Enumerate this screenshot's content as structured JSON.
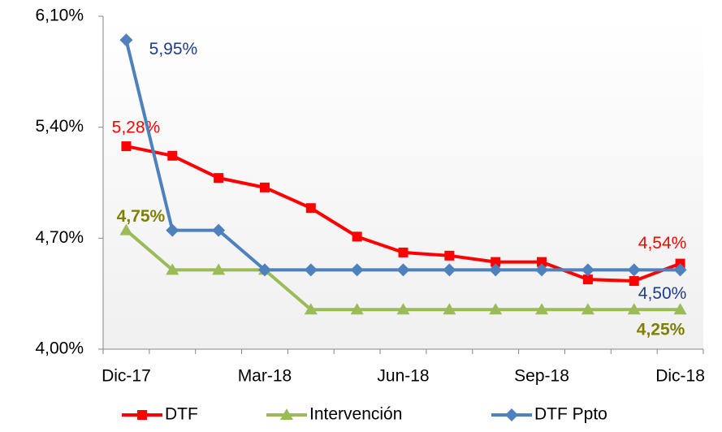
{
  "chart_data": {
    "type": "line",
    "categories": [
      "Dic-17",
      null,
      null,
      "Mar-18",
      null,
      null,
      "Jun-18",
      null,
      null,
      "Sep-18",
      null,
      null,
      "Dic-18"
    ],
    "series": [
      {
        "name": "DTF",
        "color": "#ff0000",
        "marker": "square",
        "values": [
          5.28,
          5.22,
          5.08,
          5.02,
          4.89,
          4.71,
          4.61,
          4.59,
          4.55,
          4.55,
          4.44,
          4.43,
          4.54
        ],
        "value_labels": [
          "5,28%",
          null,
          null,
          null,
          null,
          null,
          null,
          null,
          null,
          null,
          null,
          null,
          "4,54%"
        ]
      },
      {
        "name": "Intervención",
        "color": "#9bbb59",
        "marker": "triangle",
        "values": [
          4.75,
          4.5,
          4.5,
          4.5,
          4.25,
          4.25,
          4.25,
          4.25,
          4.25,
          4.25,
          4.25,
          4.25,
          4.25
        ],
        "value_labels": [
          "4,75%",
          null,
          null,
          null,
          null,
          null,
          null,
          null,
          null,
          null,
          null,
          null,
          "4,25%"
        ]
      },
      {
        "name": "DTF Ppto",
        "color": "#4f81bd",
        "marker": "diamond",
        "values": [
          5.95,
          4.75,
          4.75,
          4.5,
          4.5,
          4.5,
          4.5,
          4.5,
          4.5,
          4.5,
          4.5,
          4.5,
          4.5
        ],
        "value_labels": [
          "5,95%",
          null,
          null,
          null,
          null,
          null,
          null,
          null,
          null,
          null,
          null,
          null,
          "4,50%"
        ]
      }
    ],
    "ylim": [
      4.0,
      6.1
    ],
    "yticks": [
      {
        "value": 4.0,
        "label": "4,00%"
      },
      {
        "value": 4.7,
        "label": "4,70%"
      },
      {
        "value": 5.4,
        "label": "5,40%"
      },
      {
        "value": 6.1,
        "label": "6,10%"
      }
    ],
    "legend": "bottom"
  }
}
